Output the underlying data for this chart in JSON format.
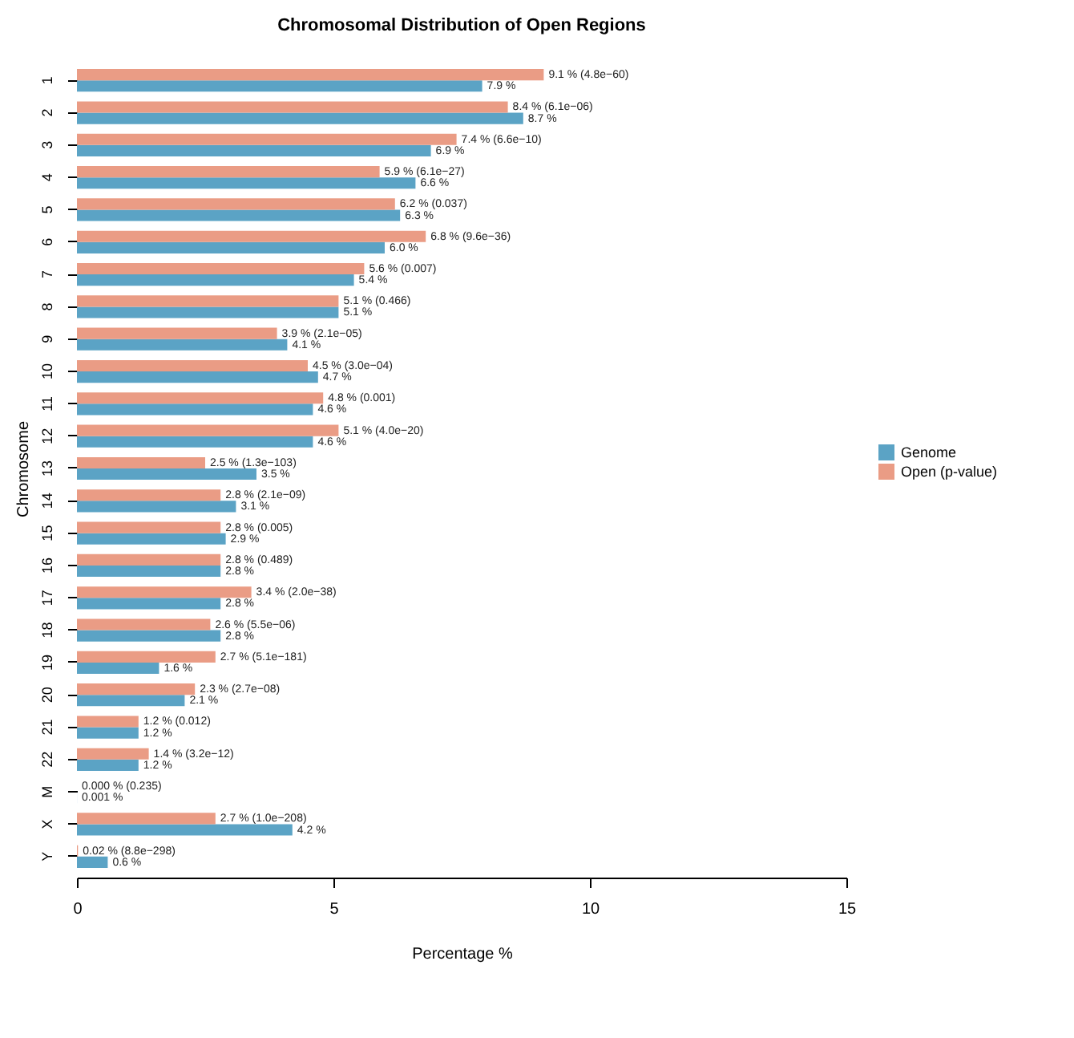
{
  "chart_data": {
    "type": "bar",
    "orientation": "horizontal",
    "title": "Chromosomal Distribution of Open Regions",
    "xlabel": "Percentage %",
    "ylabel": "Chromosome",
    "categories": [
      "1",
      "2",
      "3",
      "4",
      "5",
      "6",
      "7",
      "8",
      "9",
      "10",
      "11",
      "12",
      "13",
      "14",
      "15",
      "16",
      "17",
      "18",
      "19",
      "20",
      "21",
      "22",
      "M",
      "X",
      "Y"
    ],
    "series": [
      {
        "name": "Genome",
        "color": "#5ba3c5",
        "values": [
          7.9,
          8.7,
          6.9,
          6.6,
          6.3,
          6.0,
          5.4,
          5.1,
          4.1,
          4.7,
          4.6,
          4.6,
          3.5,
          3.1,
          2.9,
          2.8,
          2.8,
          2.8,
          1.6,
          2.1,
          1.2,
          1.2,
          0.001,
          4.2,
          0.6
        ],
        "value_labels": [
          "7.9 %",
          "8.7 %",
          "6.9 %",
          "6.6 %",
          "6.3 %",
          "6.0 %",
          "5.4 %",
          "5.1 %",
          "4.1 %",
          "4.7 %",
          "4.6 %",
          "4.6 %",
          "3.5 %",
          "3.1 %",
          "2.9 %",
          "2.8 %",
          "2.8 %",
          "2.8 %",
          "1.6 %",
          "2.1 %",
          "1.2 %",
          "1.2 %",
          "0.001 %",
          "4.2 %",
          "0.6 %"
        ]
      },
      {
        "name": "Open (p-value)",
        "color": "#ea9c85",
        "values": [
          9.1,
          8.4,
          7.4,
          5.9,
          6.2,
          6.8,
          5.6,
          5.1,
          3.9,
          4.5,
          4.8,
          5.1,
          2.5,
          2.8,
          2.8,
          2.8,
          3.4,
          2.6,
          2.7,
          2.3,
          1.2,
          1.4,
          0.0,
          2.7,
          0.02
        ],
        "value_labels": [
          "9.1 % (4.8e−60)",
          "8.4 % (6.1e−06)",
          "7.4 % (6.6e−10)",
          "5.9 % (6.1e−27)",
          "6.2 % (0.037)",
          "6.8 % (9.6e−36)",
          "5.6 % (0.007)",
          "5.1 % (0.466)",
          "3.9 % (2.1e−05)",
          "4.5 % (3.0e−04)",
          "4.8 % (0.001)",
          "5.1 % (4.0e−20)",
          "2.5 % (1.3e−103)",
          "2.8 % (2.1e−09)",
          "2.8 % (0.005)",
          "2.8 % (0.489)",
          "3.4 % (2.0e−38)",
          "2.6 % (5.5e−06)",
          "2.7 % (5.1e−181)",
          "2.3 % (2.7e−08)",
          "1.2 % (0.012)",
          "1.4 % (3.2e−12)",
          "0.000 % (0.235)",
          "2.7 % (1.0e−208)",
          "0.02 % (8.8e−298)"
        ]
      }
    ],
    "xlim": [
      0,
      15
    ],
    "xticks": [
      0,
      5,
      10,
      15
    ],
    "grid": false,
    "legend": "right"
  }
}
